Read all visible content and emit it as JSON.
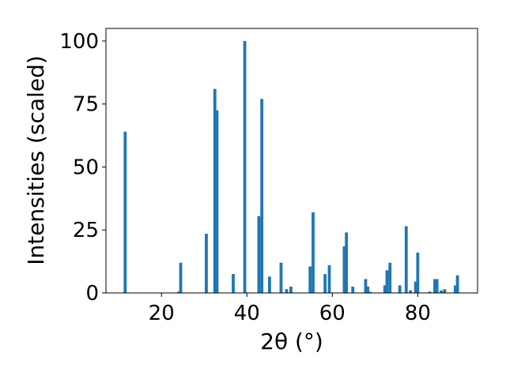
{
  "chart_data": {
    "type": "bar",
    "xlabel": "2θ (°)",
    "ylabel": "Intensities (scaled)",
    "xlim": [
      7,
      94
    ],
    "ylim": [
      0,
      105
    ],
    "x_ticks": [
      20,
      40,
      60,
      80
    ],
    "y_ticks": [
      0,
      25,
      50,
      75,
      100
    ],
    "bar_color": "#1f77b4",
    "grid": false,
    "x": [
      11.5,
      24.0,
      24.5,
      30.5,
      32.5,
      33.0,
      36.8,
      39.5,
      42.8,
      43.5,
      45.3,
      48.0,
      49.3,
      50.3,
      54.8,
      55.5,
      58.3,
      59.3,
      62.8,
      63.3,
      64.8,
      67.8,
      68.3,
      68.8,
      72.3,
      72.8,
      73.5,
      75.8,
      77.3,
      78.3,
      79.5,
      80.0,
      82.8,
      84.0,
      84.5,
      85.5,
      86.3,
      88.8,
      89.3
    ],
    "values": [
      64,
      0.5,
      12,
      23.5,
      81,
      72.5,
      7.5,
      100,
      30.5,
      77,
      6.5,
      12,
      1.5,
      2.5,
      10.5,
      32,
      7.5,
      11,
      18.5,
      24,
      2.5,
      5.5,
      2.5,
      0.5,
      3,
      9,
      12,
      3,
      26.5,
      1,
      4.5,
      16,
      0.5,
      5.5,
      5.5,
      1,
      1.5,
      3,
      7
    ]
  }
}
